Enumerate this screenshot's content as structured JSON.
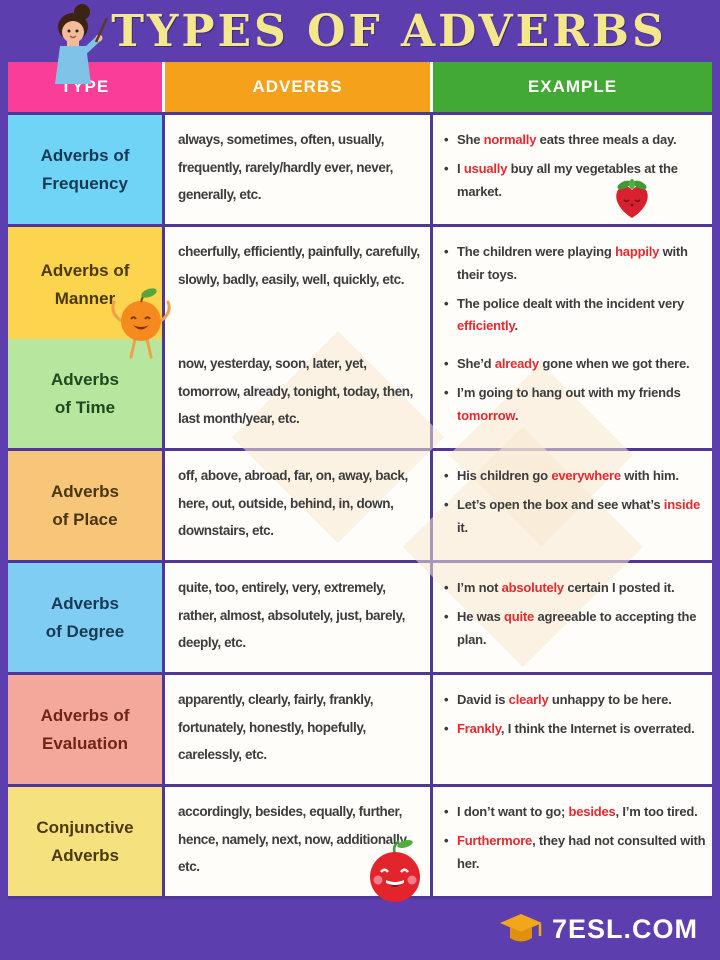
{
  "title": "TYPES OF ADVERBS",
  "footer": {
    "site": "7ESL.COM",
    "logo_icon": "graduation-cap-icon"
  },
  "colors": {
    "background_purple": "#5c3eae",
    "border_purple": "#4f3699",
    "title_yellow": "#f5e88c",
    "highlight_red": "#e8282f",
    "body_text": "#3c3c3c",
    "cell_white": "#fffdfa"
  },
  "decorations": [
    "teacher-icon",
    "strawberry-icon",
    "orange-character-icon",
    "tomato-icon"
  ],
  "table": {
    "headers": [
      {
        "label": "TYPE",
        "bg": "#fa3d96"
      },
      {
        "label": "ADVERBS",
        "bg": "#f5a11c"
      },
      {
        "label": "EXAMPLE",
        "bg": "#43a935"
      }
    ],
    "rows": [
      {
        "type_label": "Adverbs of\nFrequency",
        "type_bg": "#6fd4f5",
        "type_color": "#173a54",
        "adverbs": "always, sometimes, often, usually, frequently, rarely/hardly ever, never, generally, etc.",
        "examples": [
          [
            {
              "t": "She "
            },
            {
              "t": "normally",
              "red": true
            },
            {
              "t": " eats three meals a day."
            }
          ],
          [
            {
              "t": "I "
            },
            {
              "t": "usually",
              "red": true
            },
            {
              "t": " buy all my vegetables at the market."
            }
          ]
        ],
        "decoration": "strawberry-icon",
        "decoration_cell": "example-cell"
      },
      {
        "type_label": "Adverbs of\nManner",
        "type_bg": "#fcd44d",
        "type_color": "#4a3a0e",
        "adverbs": "cheerfully, efficiently, painfully, carefully, slowly, badly, easily, well, quickly, etc.",
        "examples": [
          [
            {
              "t": "The children were playing "
            },
            {
              "t": "happily",
              "red": true
            },
            {
              "t": " with their toys."
            }
          ],
          [
            {
              "t": "The police dealt with the incident very "
            },
            {
              "t": "efficiently",
              "red": true
            },
            {
              "t": "."
            }
          ]
        ],
        "decoration": "orange-character-icon",
        "decoration_cell": "type-cell"
      },
      {
        "type_label": "Adverbs\nof Time",
        "type_bg": "#b7e69e",
        "type_color": "#1d4a20",
        "adverbs": "now, yesterday, soon, later, yet, tomorrow, already, tonight, today, then, last month/year, etc.",
        "examples": [
          [
            {
              "t": "She’d "
            },
            {
              "t": "already",
              "red": true
            },
            {
              "t": " gone when we got there."
            }
          ],
          [
            {
              "t": "I’m going to hang out with my friends "
            },
            {
              "t": "tomorrow",
              "red": true
            },
            {
              "t": "."
            }
          ]
        ]
      },
      {
        "type_label": "Adverbs\nof Place",
        "type_bg": "#f8c678",
        "type_color": "#4a3512",
        "adverbs": "off, above, abroad, far, on, away, back, here, out, outside, behind, in, down, downstairs, etc.",
        "examples": [
          [
            {
              "t": "His children go "
            },
            {
              "t": "everywhere",
              "red": true
            },
            {
              "t": " with him."
            }
          ],
          [
            {
              "t": "Let’s open the box and see what’s "
            },
            {
              "t": "inside",
              "red": true
            },
            {
              "t": " it."
            }
          ]
        ]
      },
      {
        "type_label": "Adverbs\nof Degree",
        "type_bg": "#7fcdf3",
        "type_color": "#173a54",
        "adverbs": "quite, too, entirely, very, extremely, rather, almost, absolutely, just, barely, deeply, etc.",
        "examples": [
          [
            {
              "t": "I’m not "
            },
            {
              "t": "absolutely",
              "red": true
            },
            {
              "t": " certain I posted it."
            }
          ],
          [
            {
              "t": "He was "
            },
            {
              "t": "quite",
              "red": true
            },
            {
              "t": " agreeable to accepting the plan."
            }
          ]
        ]
      },
      {
        "type_label": "Adverbs of\nEvaluation",
        "type_bg": "#f4a89c",
        "type_color": "#6e2517",
        "adverbs": "apparently, clearly, fairly, frankly, fortunately, honestly, hopefully, carelessly, etc.",
        "examples": [
          [
            {
              "t": "David is "
            },
            {
              "t": "clearly",
              "red": true
            },
            {
              "t": " unhappy to be here."
            }
          ],
          [
            {
              "t": "Frankly",
              "red": true
            },
            {
              "t": ", I think the Internet is overrated."
            }
          ]
        ]
      },
      {
        "type_label": "Conjunctive\nAdverbs",
        "type_bg": "#f5e17d",
        "type_color": "#4a3a0e",
        "adverbs": "accordingly, besides, equally, further, hence, namely, next, now, additionally, etc.",
        "examples": [
          [
            {
              "t": "I don’t want to go; "
            },
            {
              "t": "besides",
              "red": true
            },
            {
              "t": ", I’m too tired."
            }
          ],
          [
            {
              "t": "Furthermore",
              "red": true
            },
            {
              "t": ", they had not consulted with her."
            }
          ]
        ],
        "decoration": "tomato-icon",
        "decoration_cell": "adverbs-cell"
      }
    ]
  }
}
